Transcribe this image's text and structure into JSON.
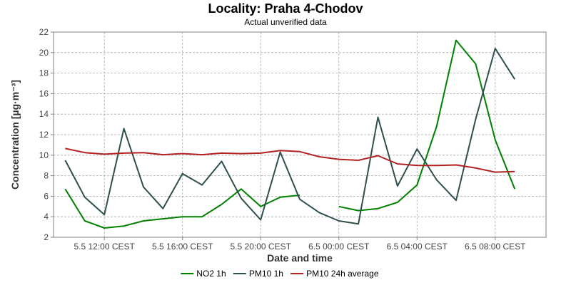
{
  "chart_data": {
    "type": "line",
    "title": "Locality: Praha 4-Chodov",
    "subtitle": "Actual unverified data",
    "xlabel": "Date and time",
    "ylabel": "Concentration [µg·m⁻³]",
    "ylim": [
      2,
      22
    ],
    "yticks": [
      2,
      4,
      6,
      8,
      10,
      12,
      14,
      16,
      18,
      20,
      22
    ],
    "x_hours": [
      10,
      11,
      12,
      13,
      14,
      15,
      16,
      17,
      18,
      19,
      20,
      21,
      22,
      23,
      24,
      25,
      26,
      27,
      28,
      29,
      30,
      31,
      32,
      33,
      34
    ],
    "xlim_hours": [
      9.4,
      34.6
    ],
    "xticks": [
      {
        "hour": 12,
        "label": "5.5 12:00 CEST"
      },
      {
        "hour": 16,
        "label": "5.5 16:00 CEST"
      },
      {
        "hour": 20,
        "label": "5.5 20:00 CEST"
      },
      {
        "hour": 24,
        "label": "6.5 00:00 CEST"
      },
      {
        "hour": 28,
        "label": "6.5 04:00 CEST"
      },
      {
        "hour": 32,
        "label": "6.5 08:00 CEST"
      }
    ],
    "grid": true,
    "legend_position": "bottom",
    "series": [
      {
        "name": "NO2 1h",
        "color": "#008000",
        "values": [
          6.7,
          3.6,
          2.9,
          3.1,
          3.6,
          3.8,
          4.0,
          4.0,
          5.2,
          6.7,
          5.0,
          5.9,
          6.1,
          null,
          5.0,
          4.6,
          4.8,
          5.4,
          7.1,
          12.8,
          21.2,
          18.9,
          11.5,
          6.7,
          null
        ]
      },
      {
        "name": "PM10 1h",
        "color": "#2f4f4f",
        "values": [
          9.5,
          5.9,
          4.2,
          12.6,
          6.9,
          4.8,
          8.2,
          7.1,
          9.4,
          5.8,
          3.7,
          10.3,
          5.7,
          4.4,
          3.6,
          3.3,
          13.7,
          7.0,
          10.6,
          7.6,
          5.6,
          13.5,
          20.4,
          17.4,
          null
        ]
      },
      {
        "name": "PM10 24h average",
        "color": "#b22222",
        "values": [
          10.65,
          10.25,
          10.1,
          10.2,
          10.25,
          10.05,
          10.15,
          10.05,
          10.2,
          10.15,
          10.2,
          10.45,
          10.35,
          9.85,
          9.6,
          9.5,
          9.95,
          9.15,
          9.0,
          9.0,
          9.05,
          8.75,
          8.35,
          8.4,
          null
        ]
      }
    ]
  }
}
